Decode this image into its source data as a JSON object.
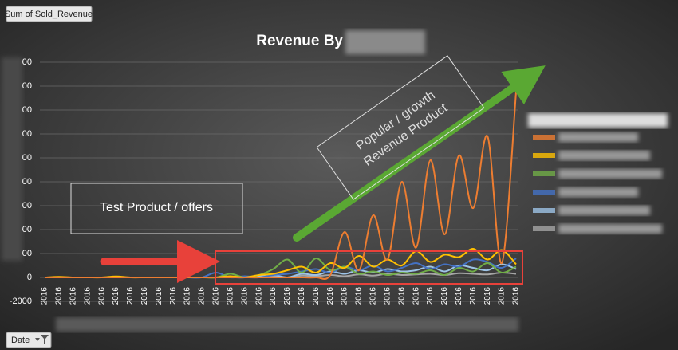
{
  "field_button": "Sum of Sold_Revenue",
  "axis_button": "Date",
  "annotations": {
    "left_box": "Test Product / offers",
    "right_box": [
      "Popular / growth",
      "Revenue Product"
    ]
  },
  "chart_data": {
    "type": "line",
    "title": "Revenue By",
    "categories": [
      "2016",
      "2016",
      "2016",
      "2016",
      "2016",
      "2016",
      "2016",
      "2016",
      "2016",
      "2016",
      "2016",
      "2016",
      "2016",
      "2016",
      "2016",
      "2016",
      "2016",
      "2016",
      "2016",
      "2016",
      "2016",
      "2016",
      "2016",
      "2016",
      "2016",
      "2016",
      "2016",
      "2016",
      "2016",
      "2016",
      "2016",
      "2016",
      "2016",
      "2016"
    ],
    "ylim": [
      -2000,
      18000
    ],
    "yticks": [
      -2000,
      0,
      {
        "value": 2000,
        "label": "00"
      },
      {
        "value": 4000,
        "label": "00"
      },
      {
        "value": 6000,
        "label": "00"
      },
      {
        "value": 8000,
        "label": "00"
      },
      {
        "value": 10000,
        "label": "00"
      },
      {
        "value": 12000,
        "label": "00"
      },
      {
        "value": 14000,
        "label": "00"
      },
      {
        "value": 16000,
        "label": "00"
      },
      {
        "value": 18000,
        "label": "00"
      }
    ],
    "grid": true,
    "series": [
      {
        "color": "#ed7d31",
        "values": [
          0,
          0,
          0,
          0,
          0,
          0,
          0,
          0,
          0,
          0,
          0,
          0,
          0,
          0,
          0,
          0,
          0,
          0,
          0,
          0,
          200,
          3800,
          600,
          5200,
          1500,
          8000,
          2500,
          9800,
          3600,
          10200,
          5800,
          11800,
          1200,
          15500
        ]
      },
      {
        "color": "#ffc000",
        "values": [
          0,
          50,
          0,
          0,
          0,
          80,
          0,
          0,
          0,
          0,
          0,
          0,
          0,
          100,
          0,
          200,
          300,
          600,
          900,
          400,
          1200,
          800,
          1800,
          900,
          1500,
          1000,
          2200,
          1300,
          1900,
          1700,
          2400,
          1500,
          2300,
          1100
        ]
      },
      {
        "color": "#70ad47",
        "values": [
          0,
          0,
          0,
          0,
          0,
          0,
          0,
          0,
          0,
          0,
          0,
          0,
          0,
          300,
          0,
          200,
          700,
          1500,
          400,
          1600,
          600,
          900,
          300,
          500,
          200,
          400,
          300,
          600,
          200,
          800,
          500,
          1200,
          400,
          900
        ]
      },
      {
        "color": "#4472c4",
        "values": [
          0,
          0,
          0,
          0,
          0,
          0,
          0,
          0,
          0,
          0,
          0,
          0,
          400,
          0,
          100,
          0,
          200,
          300,
          500,
          700,
          400,
          900,
          600,
          1000,
          500,
          800,
          1200,
          700,
          1100,
          900,
          1500,
          1300,
          800,
          1600
        ]
      },
      {
        "color": "#9dc3e6",
        "values": [
          0,
          0,
          0,
          0,
          0,
          0,
          0,
          0,
          0,
          0,
          0,
          0,
          0,
          0,
          0,
          100,
          200,
          0,
          300,
          200,
          500,
          300,
          600,
          400,
          700,
          500,
          600,
          900,
          500,
          1000,
          800,
          600,
          1100,
          700
        ]
      },
      {
        "color": "#a5a5a5",
        "values": [
          0,
          0,
          0,
          0,
          0,
          0,
          0,
          0,
          0,
          0,
          0,
          0,
          0,
          0,
          0,
          0,
          100,
          0,
          150,
          100,
          200,
          100,
          250,
          150,
          300,
          200,
          250,
          300,
          200,
          350,
          300,
          250,
          400,
          300
        ]
      }
    ]
  }
}
